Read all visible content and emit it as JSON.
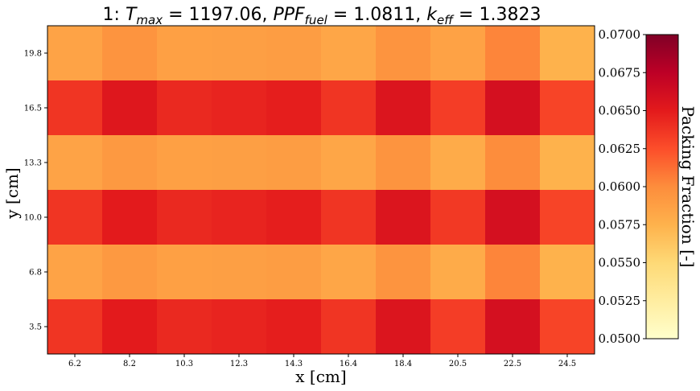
{
  "chart_data": {
    "type": "heatmap",
    "title": {
      "prefix": "1: ",
      "t_base": "T",
      "t_sub": "max",
      "t_val": " = 1197.06, ",
      "ppf_base": "PPF",
      "ppf_sub": "fuel",
      "ppf_val": " = 1.0811, ",
      "k_base": "k",
      "k_sub": "eff",
      "k_val": " = 1.3823"
    },
    "xlabel": "x [cm]",
    "ylabel": "y [cm]",
    "x_ticks": [
      "6.2",
      "8.2",
      "10.3",
      "12.3",
      "14.3",
      "16.4",
      "18.4",
      "20.5",
      "22.5",
      "24.5"
    ],
    "y_ticks": [
      "19.8",
      "16.5",
      "13.3",
      "10.0",
      "6.8",
      "3.5"
    ],
    "values": [
      [
        0.0585,
        0.0595,
        0.0587,
        0.0588,
        0.0589,
        0.0583,
        0.0595,
        0.0586,
        0.0603,
        0.0575
      ],
      [
        0.0637,
        0.0653,
        0.0643,
        0.0645,
        0.0648,
        0.0637,
        0.0655,
        0.0633,
        0.066,
        0.063
      ],
      [
        0.0585,
        0.0592,
        0.0587,
        0.0588,
        0.0589,
        0.0583,
        0.0595,
        0.058,
        0.06,
        0.0575
      ],
      [
        0.0637,
        0.065,
        0.0643,
        0.0645,
        0.0648,
        0.0637,
        0.0655,
        0.0635,
        0.066,
        0.063
      ],
      [
        0.0585,
        0.0592,
        0.0587,
        0.0588,
        0.0589,
        0.0583,
        0.0595,
        0.058,
        0.0603,
        0.0575
      ],
      [
        0.0637,
        0.065,
        0.0643,
        0.0645,
        0.0648,
        0.0637,
        0.0655,
        0.0633,
        0.066,
        0.063
      ]
    ],
    "colorbar": {
      "label": "Packing Fraction [-]",
      "min": 0.05,
      "max": 0.07,
      "ticks": [
        "0.0700",
        "0.0675",
        "0.0650",
        "0.0625",
        "0.0600",
        "0.0575",
        "0.0550",
        "0.0525",
        "0.0500"
      ],
      "colormap": "YlOrRd",
      "colors": [
        "#ffffcc",
        "#ffeda0",
        "#fed976",
        "#feb24c",
        "#fd8d3c",
        "#fc4e2a",
        "#e31a1c",
        "#bd0026",
        "#800026"
      ]
    }
  }
}
